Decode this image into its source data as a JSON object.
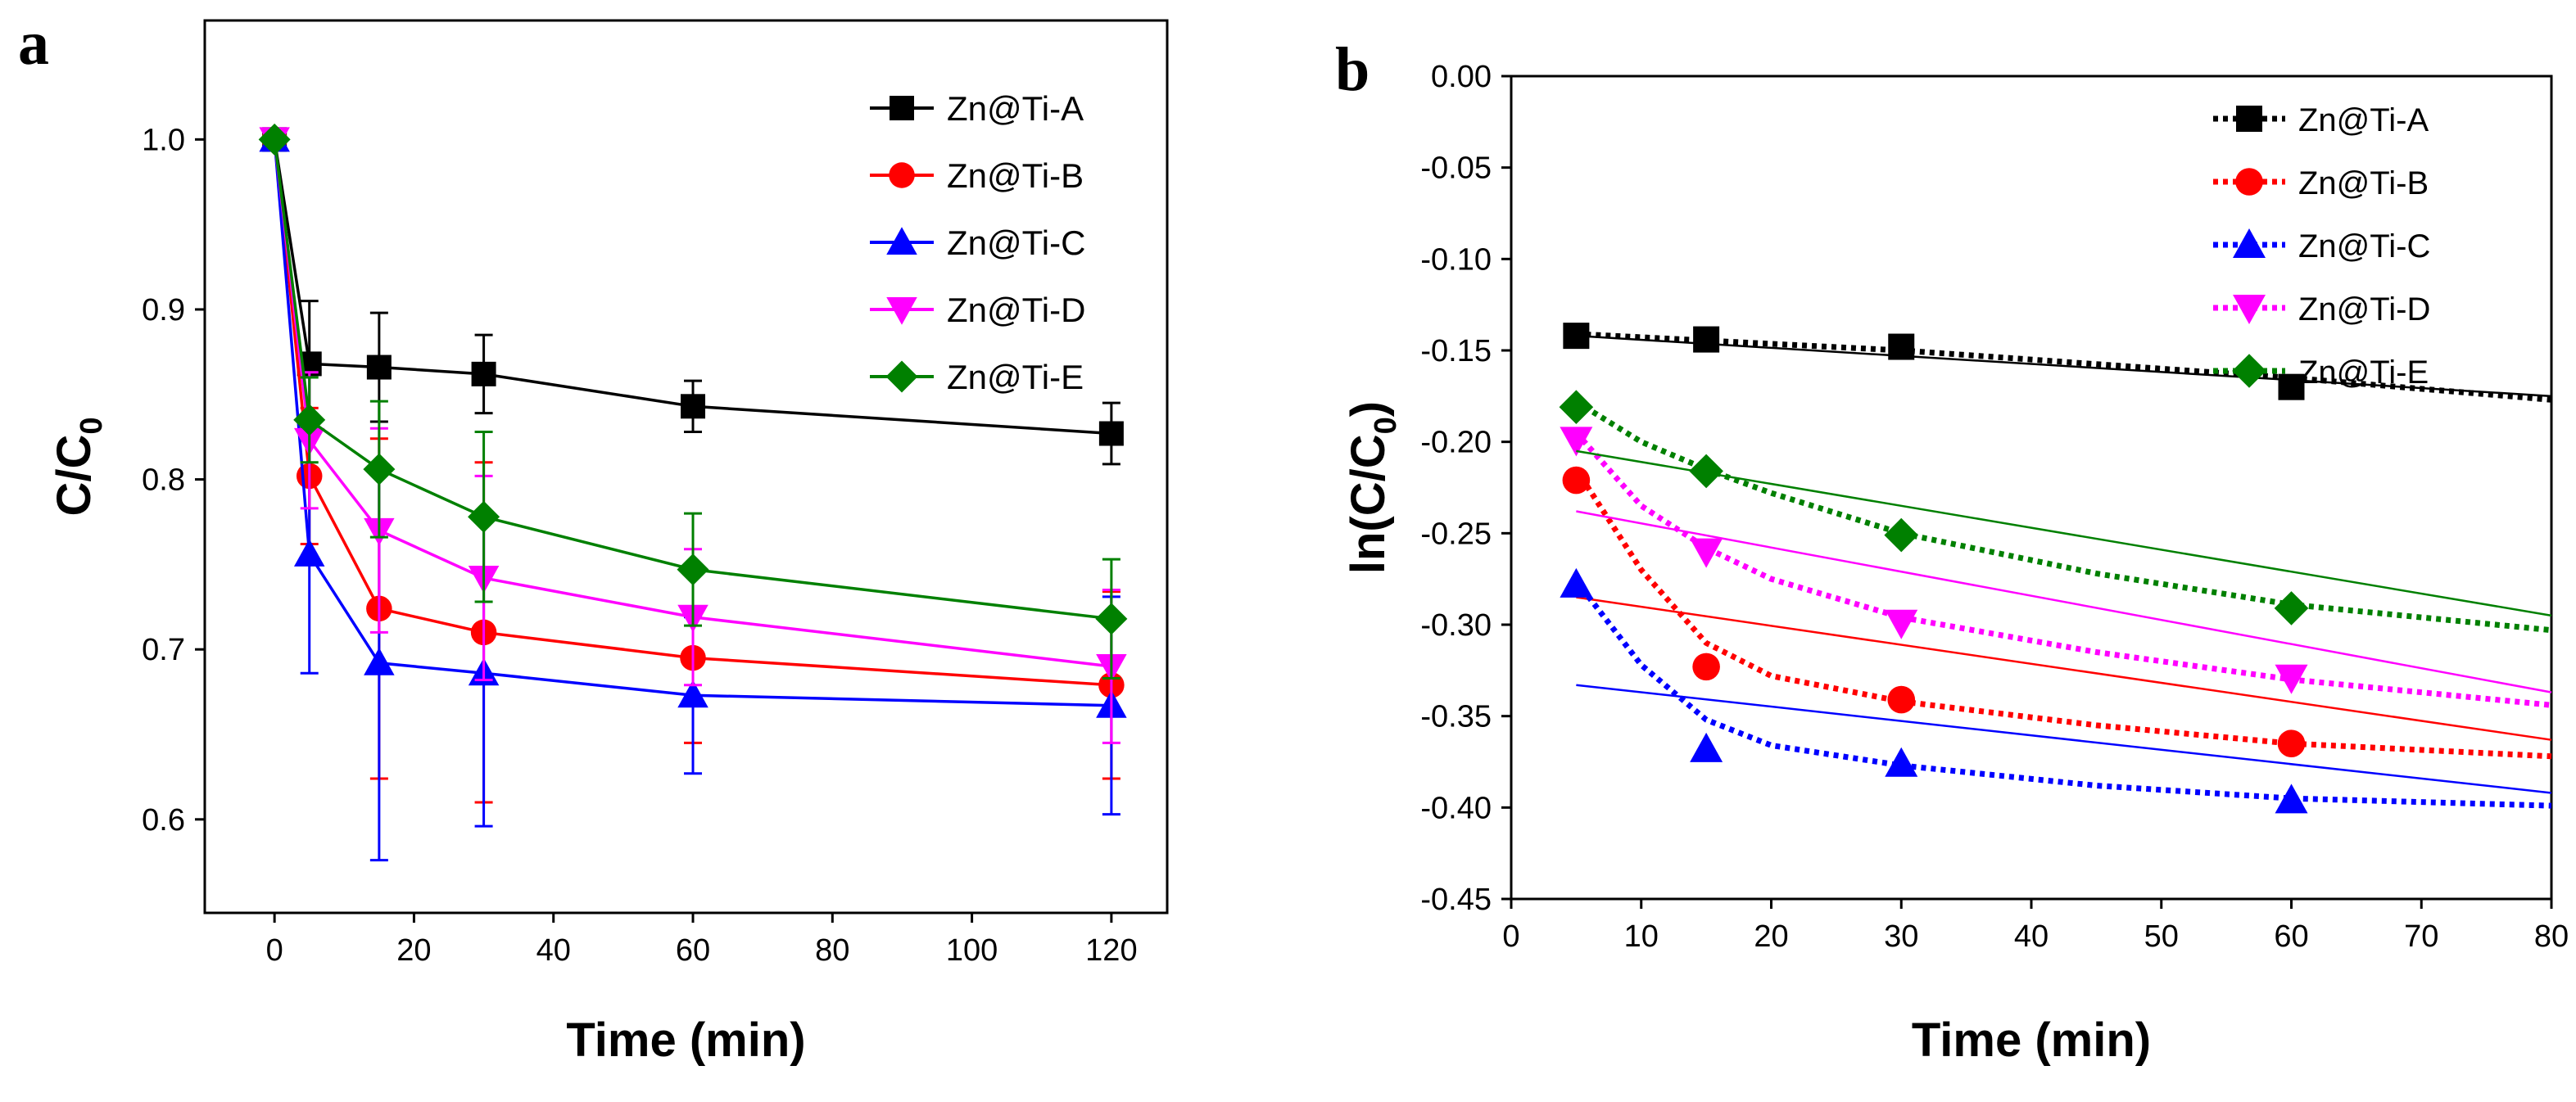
{
  "chart_data": [
    {
      "panel": "a",
      "type": "line",
      "title": "",
      "xlabel": "Time (min)",
      "ylabel": "C/C",
      "ylabel_sub": "0",
      "xlim": [
        -10,
        128
      ],
      "ylim": [
        0.545,
        1.07
      ],
      "xticks": [
        0,
        20,
        40,
        60,
        80,
        100,
        120
      ],
      "yticks": [
        0.6,
        0.7,
        0.8,
        0.9,
        1.0
      ],
      "ytick_labels": [
        "0.6",
        "0.7",
        "0.8",
        "0.9",
        "1.0"
      ],
      "legend_position": "top-right",
      "x": [
        0,
        5,
        15,
        30,
        60,
        120
      ],
      "series": [
        {
          "name": "Zn@Ti-A",
          "color": "#000000",
          "marker": "square",
          "values": [
            1.0,
            0.868,
            0.866,
            0.862,
            0.843,
            0.827
          ],
          "errors": [
            0,
            0.037,
            0.032,
            0.023,
            0.015,
            0.018
          ]
        },
        {
          "name": "Zn@Ti-B",
          "color": "#ff0000",
          "marker": "circle",
          "values": [
            1.0,
            0.802,
            0.724,
            0.71,
            0.695,
            0.679
          ],
          "errors": [
            0,
            0.04,
            0.1,
            0.1,
            0.05,
            0.055
          ]
        },
        {
          "name": "Zn@Ti-C",
          "color": "#0000ff",
          "marker": "triangle-up",
          "values": [
            1.0,
            0.756,
            0.692,
            0.686,
            0.673,
            0.667
          ],
          "errors": [
            0,
            0.07,
            0.116,
            0.09,
            0.046,
            0.064
          ]
        },
        {
          "name": "Zn@Ti-D",
          "color": "#ff00ff",
          "marker": "triangle-down",
          "values": [
            1.0,
            0.823,
            0.77,
            0.742,
            0.719,
            0.69
          ],
          "errors": [
            0,
            0.04,
            0.06,
            0.06,
            0.04,
            0.045
          ]
        },
        {
          "name": "Zn@Ti-E",
          "color": "#008000",
          "marker": "diamond",
          "values": [
            1.0,
            0.835,
            0.806,
            0.778,
            0.747,
            0.718
          ],
          "errors": [
            0,
            0.025,
            0.04,
            0.05,
            0.033,
            0.035
          ]
        }
      ]
    },
    {
      "panel": "b",
      "type": "scatter",
      "title": "",
      "xlabel": "Time (min)",
      "ylabel": "ln(C/C",
      "ylabel_sub": "0",
      "ylabel_end": ")",
      "xlim": [
        0,
        80
      ],
      "ylim": [
        -0.45,
        0.0
      ],
      "xticks": [
        0,
        10,
        20,
        30,
        40,
        50,
        60,
        70,
        80
      ],
      "yticks": [
        0.0,
        -0.05,
        -0.1,
        -0.15,
        -0.2,
        -0.25,
        -0.3,
        -0.35,
        -0.4,
        -0.45
      ],
      "ytick_labels": [
        "0.00",
        "-0.05",
        "-0.10",
        "-0.15",
        "-0.20",
        "-0.25",
        "-0.30",
        "-0.35",
        "-0.40",
        "-0.45"
      ],
      "legend_position": "top-right",
      "x": [
        5,
        15,
        30,
        60
      ],
      "series": [
        {
          "name": "Zn@Ti-A",
          "color": "#000000",
          "marker": "square",
          "values": [
            -0.142,
            -0.144,
            -0.148,
            -0.17
          ],
          "fit_line": [
            [
              5,
              -0.142
            ],
            [
              80,
              -0.175
            ]
          ],
          "trend_curve": [
            [
              5,
              -0.141
            ],
            [
              30,
              -0.15
            ],
            [
              60,
              -0.165
            ],
            [
              80,
              -0.177
            ]
          ]
        },
        {
          "name": "Zn@Ti-B",
          "color": "#ff0000",
          "marker": "circle",
          "values": [
            -0.221,
            -0.323,
            -0.341,
            -0.365
          ],
          "fit_line": [
            [
              5,
              -0.285
            ],
            [
              80,
              -0.363
            ]
          ],
          "trend_curve": [
            [
              5,
              -0.215
            ],
            [
              10,
              -0.27
            ],
            [
              15,
              -0.31
            ],
            [
              20,
              -0.328
            ],
            [
              30,
              -0.342
            ],
            [
              45,
              -0.355
            ],
            [
              60,
              -0.365
            ],
            [
              80,
              -0.372
            ]
          ]
        },
        {
          "name": "Zn@Ti-C",
          "color": "#0000ff",
          "marker": "triangle-up",
          "values": [
            -0.278,
            -0.368,
            -0.376,
            -0.396
          ],
          "fit_line": [
            [
              5,
              -0.333
            ],
            [
              80,
              -0.392
            ]
          ],
          "trend_curve": [
            [
              5,
              -0.276
            ],
            [
              10,
              -0.322
            ],
            [
              15,
              -0.352
            ],
            [
              20,
              -0.366
            ],
            [
              30,
              -0.377
            ],
            [
              45,
              -0.388
            ],
            [
              60,
              -0.395
            ],
            [
              80,
              -0.399
            ]
          ]
        },
        {
          "name": "Zn@Ti-D",
          "color": "#ff00ff",
          "marker": "triangle-down",
          "values": [
            -0.199,
            -0.26,
            -0.299,
            -0.329
          ],
          "fit_line": [
            [
              5,
              -0.238
            ],
            [
              80,
              -0.337
            ]
          ],
          "trend_curve": [
            [
              5,
              -0.195
            ],
            [
              10,
              -0.235
            ],
            [
              15,
              -0.258
            ],
            [
              20,
              -0.275
            ],
            [
              30,
              -0.296
            ],
            [
              45,
              -0.315
            ],
            [
              60,
              -0.33
            ],
            [
              80,
              -0.344
            ]
          ]
        },
        {
          "name": "Zn@Ti-E",
          "color": "#008000",
          "marker": "diamond",
          "values": [
            -0.181,
            -0.216,
            -0.251,
            -0.291
          ],
          "fit_line": [
            [
              5,
              -0.205
            ],
            [
              80,
              -0.295
            ]
          ],
          "trend_curve": [
            [
              5,
              -0.178
            ],
            [
              10,
              -0.2
            ],
            [
              15,
              -0.215
            ],
            [
              20,
              -0.228
            ],
            [
              30,
              -0.25
            ],
            [
              45,
              -0.272
            ],
            [
              60,
              -0.289
            ],
            [
              80,
              -0.303
            ]
          ]
        }
      ]
    }
  ],
  "labels": {
    "panel_a": "a",
    "panel_b": "b"
  }
}
